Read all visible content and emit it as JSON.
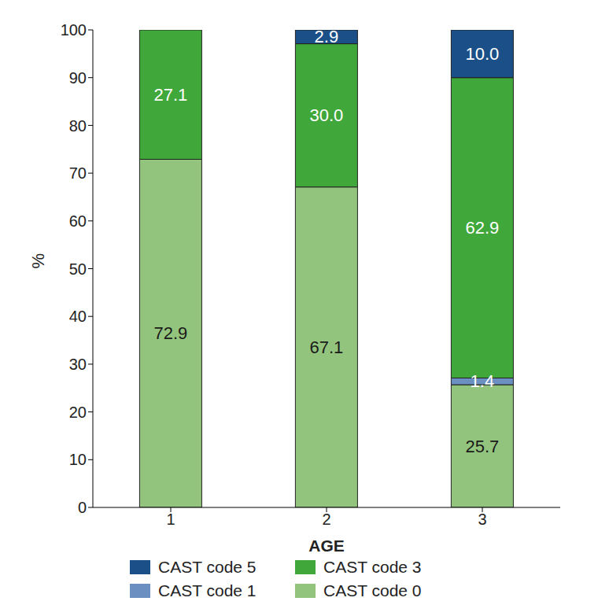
{
  "chart_data": {
    "type": "bar",
    "stacked": true,
    "data_labels": true,
    "x_label": "AGE",
    "y_label": "%",
    "categories": [
      "1",
      "2",
      "3"
    ],
    "ylim": [
      0,
      100
    ],
    "yticks": [
      0,
      10,
      20,
      30,
      40,
      50,
      60,
      70,
      80,
      90,
      100
    ],
    "legend": "bottom",
    "grid": false,
    "series": [
      {
        "name": "CAST code 0",
        "color": "#93c47d",
        "values": [
          72.9,
          67.1,
          25.7
        ],
        "value_labels": [
          "72.9",
          "67.1",
          "25.7"
        ]
      },
      {
        "name": "CAST code 1",
        "color": "#6a8fc0",
        "values": [
          null,
          null,
          1.4
        ],
        "value_labels": [
          null,
          null,
          "1.4"
        ]
      },
      {
        "name": "CAST code 3",
        "color": "#40a73a",
        "values": [
          27.1,
          30.0,
          62.9
        ],
        "value_labels": [
          "27.1",
          "30.0",
          "62.9"
        ]
      },
      {
        "name": "CAST code 5",
        "color": "#1b4f88",
        "values": [
          null,
          2.9,
          10.0
        ],
        "value_labels": [
          null,
          "2.9",
          "10.0"
        ]
      }
    ]
  }
}
